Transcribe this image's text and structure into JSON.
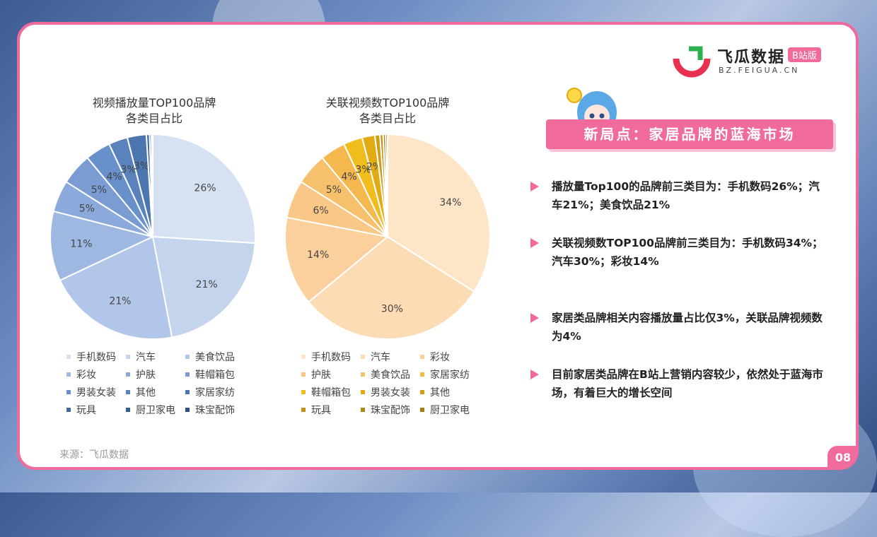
{
  "logo": {
    "name": "飞瓜数据",
    "badge": "B站版",
    "domain": "BZ.FEIGUA.CN"
  },
  "banner": "新局点：家居品牌的蓝海市场",
  "bullets": [
    "播放量Top100的品牌前三类目为：手机数码26%；汽车21%；美食饮品21%",
    "关联视频数TOP100品牌前三类目为：手机数码34%；汽车30%；彩妆14%",
    "家居类品牌相关内容播放量占比仅3%，关联品牌视频数为4%",
    "目前家居类品牌在B站上营销内容较少，依然处于蓝海市场，有着巨大的增长空间"
  ],
  "source": "来源：飞瓜数据",
  "page_number": "08",
  "chart_data": [
    {
      "type": "pie",
      "title": "视频播放量TOP100品牌",
      "subtitle": "各类目占比",
      "categories": [
        "手机数码",
        "汽车",
        "美食饮品",
        "彩妆",
        "护肤",
        "鞋帽箱包",
        "男装女装",
        "其他",
        "家居家纺",
        "玩具",
        "厨卫家电",
        "珠宝配饰"
      ],
      "values": [
        26,
        21,
        21,
        11,
        5,
        5,
        4,
        3,
        3,
        0.5,
        0.3,
        0.2
      ],
      "labels": [
        "26%",
        "21%",
        "21%",
        "11%",
        "5%",
        "5%",
        "4%",
        "3%",
        "3%",
        "",
        "",
        ""
      ],
      "colors": [
        "#d6e1f1",
        "#c4d4ed",
        "#b1c6e8",
        "#9fb8e2",
        "#8baadb",
        "#7a9cd3",
        "#6890ca",
        "#5a83bd",
        "#4b76ae",
        "#3f699f",
        "#345d91",
        "#2a5083"
      ],
      "legend": "bottom"
    },
    {
      "type": "pie",
      "title": "关联视频数TOP100品牌",
      "subtitle": "各类目占比",
      "categories": [
        "手机数码",
        "汽车",
        "彩妆",
        "护肤",
        "美食饮品",
        "家居家纺",
        "鞋帽箱包",
        "男装女装",
        "其他",
        "玩具",
        "珠宝配饰",
        "厨卫家电"
      ],
      "values": [
        34,
        30,
        14,
        6,
        5,
        4,
        3,
        2,
        0.8,
        0.5,
        0.4,
        0.3
      ],
      "labels": [
        "34%",
        "30%",
        "14%",
        "6%",
        "5%",
        "4%",
        "3%",
        "2%",
        "",
        "",
        "",
        ""
      ],
      "colors": [
        "#fde6c8",
        "#fcdcb4",
        "#fbd09c",
        "#f9c886",
        "#f7c06d",
        "#f4b84f",
        "#f0bc1e",
        "#e2ab14",
        "#d09d14",
        "#c29116",
        "#b38717",
        "#a47b17"
      ],
      "legend": "bottom"
    }
  ]
}
